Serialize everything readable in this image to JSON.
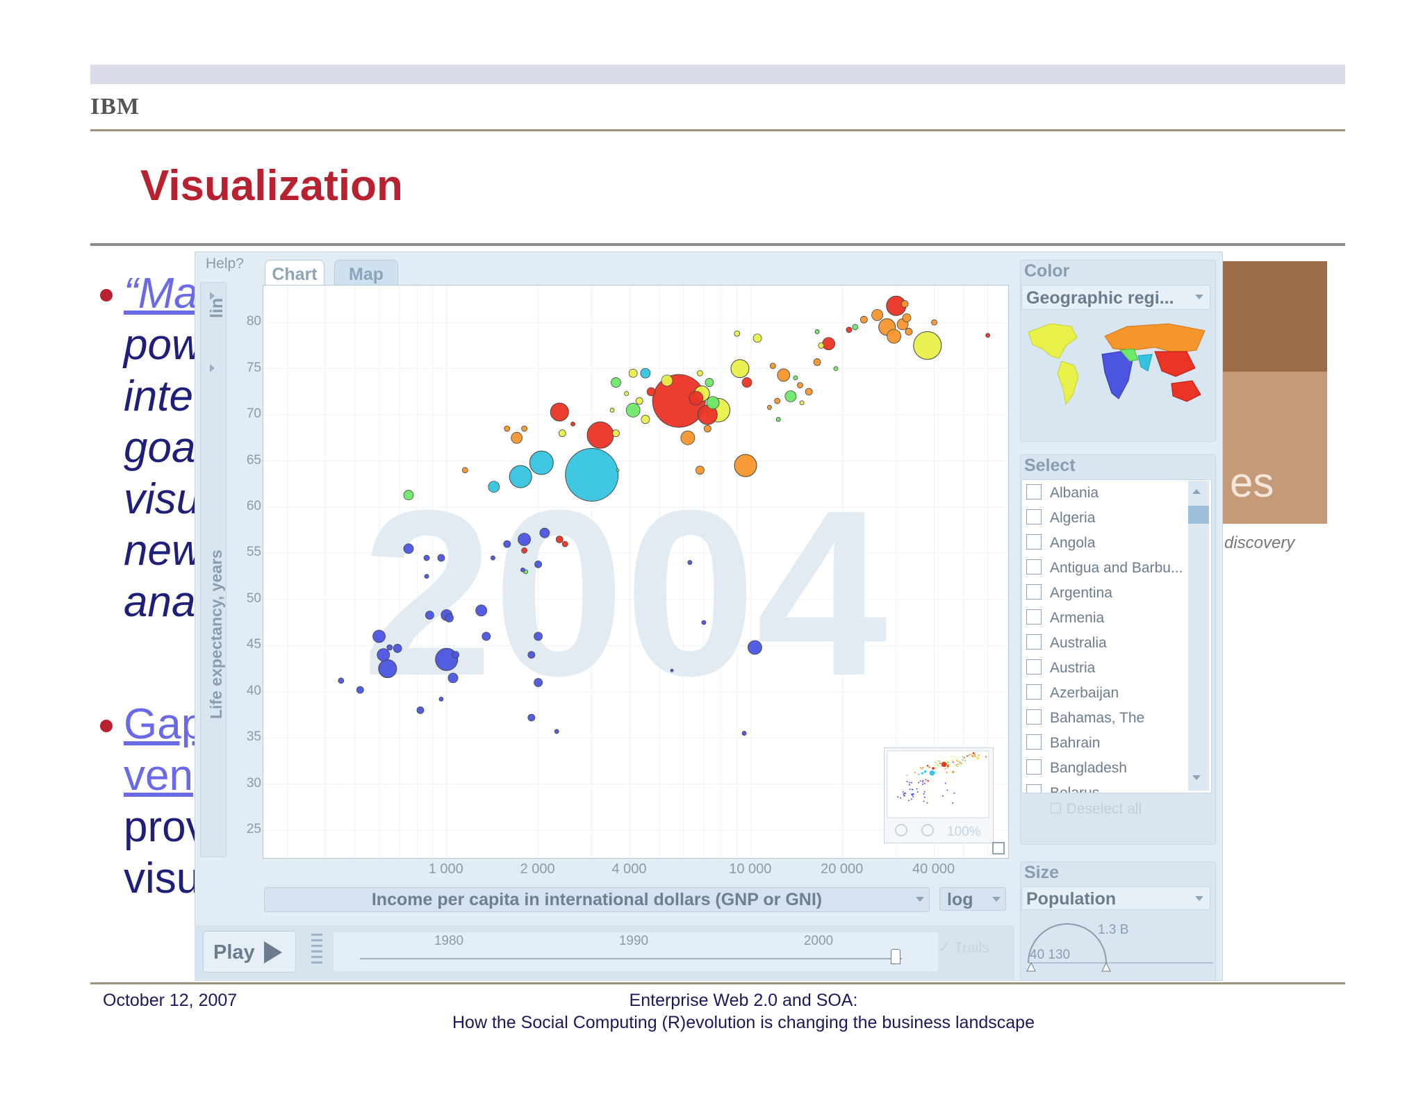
{
  "slide": {
    "logo": "IBM",
    "title": "Visualization",
    "bullets": [
      {
        "lines": [
          "“Ma",
          "pow",
          "inte",
          "goa",
          "visu",
          "new",
          "ana"
        ]
      },
      {
        "lines": [
          "Gap",
          "ven",
          "prov",
          "visu"
        ]
      }
    ],
    "background_text": "es",
    "background_caption": "discovery",
    "footer": {
      "date": "October 12, 2007",
      "line1": "Enterprise Web 2.0 and SOA:",
      "line2": "How the Social Computing (R)evolution is changing the business landscape"
    }
  },
  "app": {
    "help": "Help?",
    "tabs": [
      "Chart",
      "Map"
    ],
    "y_scale": "lin",
    "y_axis_label": "Life expectancy, years",
    "x_axis_label": "Income per capita in international dollars (GNP or GNI)",
    "x_scale": "log",
    "play_label": "Play",
    "timeline_years": [
      "1980",
      "1990",
      "2000"
    ],
    "trails_label": "Trails",
    "zoom_label": "100%",
    "color_panel": {
      "title": "Color",
      "selected": "Geographic regi..."
    },
    "select_panel": {
      "title": "Select",
      "countries": [
        "Albania",
        "Algeria",
        "Angola",
        "Antigua and Barbu...",
        "Argentina",
        "Armenia",
        "Australia",
        "Austria",
        "Azerbaijan",
        "Bahamas, The",
        "Bahrain",
        "Bangladesh",
        "Belarus"
      ],
      "deselect_label": "Deselect all"
    },
    "size_panel": {
      "title": "Size",
      "selected": "Population",
      "max_label": "1.3 B",
      "min_label": "40 130"
    },
    "colors": {
      "africa": "#4b55e0",
      "americas": "#e8f04a",
      "europe_asia": "#f5962c",
      "east_asia": "#ea3426",
      "south_asia": "#35c4e0",
      "middle_east": "#6ee86a"
    }
  },
  "chart_data": {
    "type": "scatter",
    "year_watermark": "2004",
    "x_scale": "log",
    "xlim": [
      250,
      70000
    ],
    "ylim": [
      22,
      84
    ],
    "x_ticks": [
      1000,
      2000,
      4000,
      10000,
      20000,
      40000
    ],
    "x_tick_labels": [
      "1 000",
      "2 000",
      "4 000",
      "10 000",
      "20 000",
      "40 000"
    ],
    "y_ticks": [
      25,
      30,
      35,
      40,
      45,
      50,
      55,
      60,
      65,
      70,
      75,
      80
    ],
    "points": [
      {
        "x": 5800,
        "y": 71.5,
        "r": 38,
        "c": "#ea3426"
      },
      {
        "x": 3000,
        "y": 63.5,
        "r": 38,
        "c": "#35c4e0"
      },
      {
        "x": 38000,
        "y": 77.5,
        "r": 20,
        "c": "#e8f04a"
      },
      {
        "x": 30000,
        "y": 81.8,
        "r": 14,
        "c": "#ea3426"
      },
      {
        "x": 28000,
        "y": 79.5,
        "r": 12,
        "c": "#f5962c"
      },
      {
        "x": 29500,
        "y": 78.5,
        "r": 10,
        "c": "#f5962c"
      },
      {
        "x": 26000,
        "y": 80.8,
        "r": 8,
        "c": "#f5962c"
      },
      {
        "x": 31500,
        "y": 79.8,
        "r": 8,
        "c": "#f5962c"
      },
      {
        "x": 32500,
        "y": 80.5,
        "r": 6,
        "c": "#f5962c"
      },
      {
        "x": 32000,
        "y": 82.0,
        "r": 5,
        "c": "#f5962c"
      },
      {
        "x": 33000,
        "y": 79.0,
        "r": 5,
        "c": "#f5962c"
      },
      {
        "x": 23500,
        "y": 80.3,
        "r": 5,
        "c": "#f5962c"
      },
      {
        "x": 22000,
        "y": 79.5,
        "r": 4,
        "c": "#6ee86a"
      },
      {
        "x": 21000,
        "y": 79.2,
        "r": 4,
        "c": "#ea3426"
      },
      {
        "x": 40000,
        "y": 80.0,
        "r": 4,
        "c": "#f5962c"
      },
      {
        "x": 18000,
        "y": 77.7,
        "r": 9,
        "c": "#ea3426"
      },
      {
        "x": 17000,
        "y": 77.5,
        "r": 4,
        "c": "#e8f04a"
      },
      {
        "x": 16500,
        "y": 75.7,
        "r": 5,
        "c": "#f5962c"
      },
      {
        "x": 19000,
        "y": 75.0,
        "r": 3,
        "c": "#6ee86a"
      },
      {
        "x": 16500,
        "y": 79.0,
        "r": 3,
        "c": "#6ee86a"
      },
      {
        "x": 60000,
        "y": 78.6,
        "r": 3,
        "c": "#ea3426"
      },
      {
        "x": 9200,
        "y": 75.0,
        "r": 13,
        "c": "#e8f04a"
      },
      {
        "x": 9700,
        "y": 73.5,
        "r": 7,
        "c": "#ea3426"
      },
      {
        "x": 10500,
        "y": 78.3,
        "r": 6,
        "c": "#e8f04a"
      },
      {
        "x": 9000,
        "y": 78.8,
        "r": 4,
        "c": "#e8f04a"
      },
      {
        "x": 12800,
        "y": 74.3,
        "r": 9,
        "c": "#f5962c"
      },
      {
        "x": 11800,
        "y": 75.3,
        "r": 4,
        "c": "#f5962c"
      },
      {
        "x": 13500,
        "y": 72.0,
        "r": 8,
        "c": "#6ee86a"
      },
      {
        "x": 14500,
        "y": 73.2,
        "r": 4,
        "c": "#f5962c"
      },
      {
        "x": 15500,
        "y": 72.5,
        "r": 5,
        "c": "#f5962c"
      },
      {
        "x": 14000,
        "y": 74.0,
        "r": 3,
        "c": "#6ee86a"
      },
      {
        "x": 12200,
        "y": 71.5,
        "r": 4,
        "c": "#f5962c"
      },
      {
        "x": 14700,
        "y": 71.3,
        "r": 3,
        "c": "#e8f04a"
      },
      {
        "x": 11500,
        "y": 70.8,
        "r": 3,
        "c": "#f5962c"
      },
      {
        "x": 12300,
        "y": 69.5,
        "r": 3,
        "c": "#6ee86a"
      },
      {
        "x": 7800,
        "y": 70.5,
        "r": 17,
        "c": "#e8f04a"
      },
      {
        "x": 7200,
        "y": 70.0,
        "r": 14,
        "c": "#ea3426"
      },
      {
        "x": 6900,
        "y": 72.3,
        "r": 11,
        "c": "#e8f04a"
      },
      {
        "x": 7500,
        "y": 71.3,
        "r": 9,
        "c": "#6ee86a"
      },
      {
        "x": 6600,
        "y": 71.8,
        "r": 10,
        "c": "#ea3426"
      },
      {
        "x": 7300,
        "y": 73.5,
        "r": 6,
        "c": "#6ee86a"
      },
      {
        "x": 6800,
        "y": 74.5,
        "r": 4,
        "c": "#e8f04a"
      },
      {
        "x": 6200,
        "y": 67.5,
        "r": 10,
        "c": "#f5962c"
      },
      {
        "x": 7200,
        "y": 68.5,
        "r": 5,
        "c": "#f5962c"
      },
      {
        "x": 6800,
        "y": 64.0,
        "r": 6,
        "c": "#f5962c"
      },
      {
        "x": 9600,
        "y": 64.5,
        "r": 16,
        "c": "#f5962c"
      },
      {
        "x": 5300,
        "y": 73.7,
        "r": 8,
        "c": "#e8f04a"
      },
      {
        "x": 4500,
        "y": 69.5,
        "r": 6,
        "c": "#e8f04a"
      },
      {
        "x": 4100,
        "y": 70.5,
        "r": 10,
        "c": "#6ee86a"
      },
      {
        "x": 4700,
        "y": 72.5,
        "r": 6,
        "c": "#ea3426"
      },
      {
        "x": 4300,
        "y": 71.5,
        "r": 5,
        "c": "#e8f04a"
      },
      {
        "x": 3600,
        "y": 73.5,
        "r": 7,
        "c": "#6ee86a"
      },
      {
        "x": 4100,
        "y": 74.5,
        "r": 6,
        "c": "#e8f04a"
      },
      {
        "x": 4500,
        "y": 74.5,
        "r": 7,
        "c": "#35c4e0"
      },
      {
        "x": 3900,
        "y": 72.3,
        "r": 3,
        "c": "#e8f04a"
      },
      {
        "x": 3500,
        "y": 70.5,
        "r": 3,
        "c": "#e8f04a"
      },
      {
        "x": 3200,
        "y": 67.8,
        "r": 19,
        "c": "#ea3426"
      },
      {
        "x": 3600,
        "y": 68.0,
        "r": 5,
        "c": "#e8f04a"
      },
      {
        "x": 2350,
        "y": 70.3,
        "r": 13,
        "c": "#ea3426"
      },
      {
        "x": 2400,
        "y": 68.0,
        "r": 5,
        "c": "#e8f04a"
      },
      {
        "x": 2600,
        "y": 69.0,
        "r": 3,
        "c": "#ea3426"
      },
      {
        "x": 2050,
        "y": 64.8,
        "r": 17,
        "c": "#35c4e0"
      },
      {
        "x": 1750,
        "y": 63.3,
        "r": 16,
        "c": "#35c4e0"
      },
      {
        "x": 1700,
        "y": 67.5,
        "r": 8,
        "c": "#f5962c"
      },
      {
        "x": 1580,
        "y": 68.5,
        "r": 4,
        "c": "#f5962c"
      },
      {
        "x": 1800,
        "y": 68.5,
        "r": 4,
        "c": "#f5962c"
      },
      {
        "x": 1430,
        "y": 62.2,
        "r": 8,
        "c": "#35c4e0"
      },
      {
        "x": 1150,
        "y": 64.0,
        "r": 4,
        "c": "#f5962c"
      },
      {
        "x": 750,
        "y": 61.3,
        "r": 7,
        "c": "#6ee86a"
      },
      {
        "x": 3650,
        "y": 64.0,
        "r": 2,
        "c": "#6ee86a"
      },
      {
        "x": 1800,
        "y": 56.5,
        "r": 9,
        "c": "#4b55e0"
      },
      {
        "x": 2100,
        "y": 57.2,
        "r": 7,
        "c": "#4b55e0"
      },
      {
        "x": 2350,
        "y": 56.5,
        "r": 5,
        "c": "#ea3426"
      },
      {
        "x": 2450,
        "y": 56.0,
        "r": 4,
        "c": "#ea3426"
      },
      {
        "x": 1800,
        "y": 55.3,
        "r": 4,
        "c": "#ea3426"
      },
      {
        "x": 1580,
        "y": 56.0,
        "r": 5,
        "c": "#4b55e0"
      },
      {
        "x": 1420,
        "y": 54.5,
        "r": 3,
        "c": "#4b55e0"
      },
      {
        "x": 2000,
        "y": 53.8,
        "r": 5,
        "c": "#4b55e0"
      },
      {
        "x": 1820,
        "y": 53.0,
        "r": 3,
        "c": "#6ee86a"
      },
      {
        "x": 1780,
        "y": 53.2,
        "r": 3,
        "c": "#4b55e0"
      },
      {
        "x": 750,
        "y": 55.5,
        "r": 7,
        "c": "#4b55e0"
      },
      {
        "x": 860,
        "y": 54.5,
        "r": 4,
        "c": "#4b55e0"
      },
      {
        "x": 960,
        "y": 54.5,
        "r": 5,
        "c": "#4b55e0"
      },
      {
        "x": 860,
        "y": 52.5,
        "r": 3,
        "c": "#4b55e0"
      },
      {
        "x": 6300,
        "y": 54.0,
        "r": 3,
        "c": "#4b55e0"
      },
      {
        "x": 880,
        "y": 48.3,
        "r": 6,
        "c": "#4b55e0"
      },
      {
        "x": 1000,
        "y": 48.3,
        "r": 8,
        "c": "#4b55e0"
      },
      {
        "x": 1020,
        "y": 48.0,
        "r": 6,
        "c": "#4b55e0"
      },
      {
        "x": 1300,
        "y": 48.8,
        "r": 8,
        "c": "#4b55e0"
      },
      {
        "x": 7000,
        "y": 47.5,
        "r": 3,
        "c": "#4b55e0"
      },
      {
        "x": 600,
        "y": 46.0,
        "r": 9,
        "c": "#4b55e0"
      },
      {
        "x": 650,
        "y": 44.8,
        "r": 4,
        "c": "#4b55e0"
      },
      {
        "x": 690,
        "y": 44.7,
        "r": 6,
        "c": "#4b55e0"
      },
      {
        "x": 620,
        "y": 44.0,
        "r": 9,
        "c": "#4b55e0"
      },
      {
        "x": 640,
        "y": 42.5,
        "r": 13,
        "c": "#4b55e0"
      },
      {
        "x": 1000,
        "y": 43.5,
        "r": 16,
        "c": "#4b55e0"
      },
      {
        "x": 1070,
        "y": 44.0,
        "r": 5,
        "c": "#4b55e0"
      },
      {
        "x": 1050,
        "y": 41.5,
        "r": 7,
        "c": "#4b55e0"
      },
      {
        "x": 1350,
        "y": 46.0,
        "r": 6,
        "c": "#4b55e0"
      },
      {
        "x": 2000,
        "y": 46.0,
        "r": 6,
        "c": "#4b55e0"
      },
      {
        "x": 1900,
        "y": 44.0,
        "r": 5,
        "c": "#4b55e0"
      },
      {
        "x": 2000,
        "y": 41.0,
        "r": 6,
        "c": "#4b55e0"
      },
      {
        "x": 10300,
        "y": 44.8,
        "r": 10,
        "c": "#4b55e0"
      },
      {
        "x": 5500,
        "y": 42.3,
        "r": 2,
        "c": "#4b55e0"
      },
      {
        "x": 450,
        "y": 41.2,
        "r": 4,
        "c": "#4b55e0"
      },
      {
        "x": 520,
        "y": 40.2,
        "r": 5,
        "c": "#4b55e0"
      },
      {
        "x": 960,
        "y": 39.2,
        "r": 3,
        "c": "#4b55e0"
      },
      {
        "x": 820,
        "y": 38.0,
        "r": 5,
        "c": "#4b55e0"
      },
      {
        "x": 1900,
        "y": 37.2,
        "r": 5,
        "c": "#4b55e0"
      },
      {
        "x": 2300,
        "y": 35.7,
        "r": 3,
        "c": "#4b55e0"
      },
      {
        "x": 9500,
        "y": 35.5,
        "r": 3,
        "c": "#4b55e0"
      }
    ]
  }
}
